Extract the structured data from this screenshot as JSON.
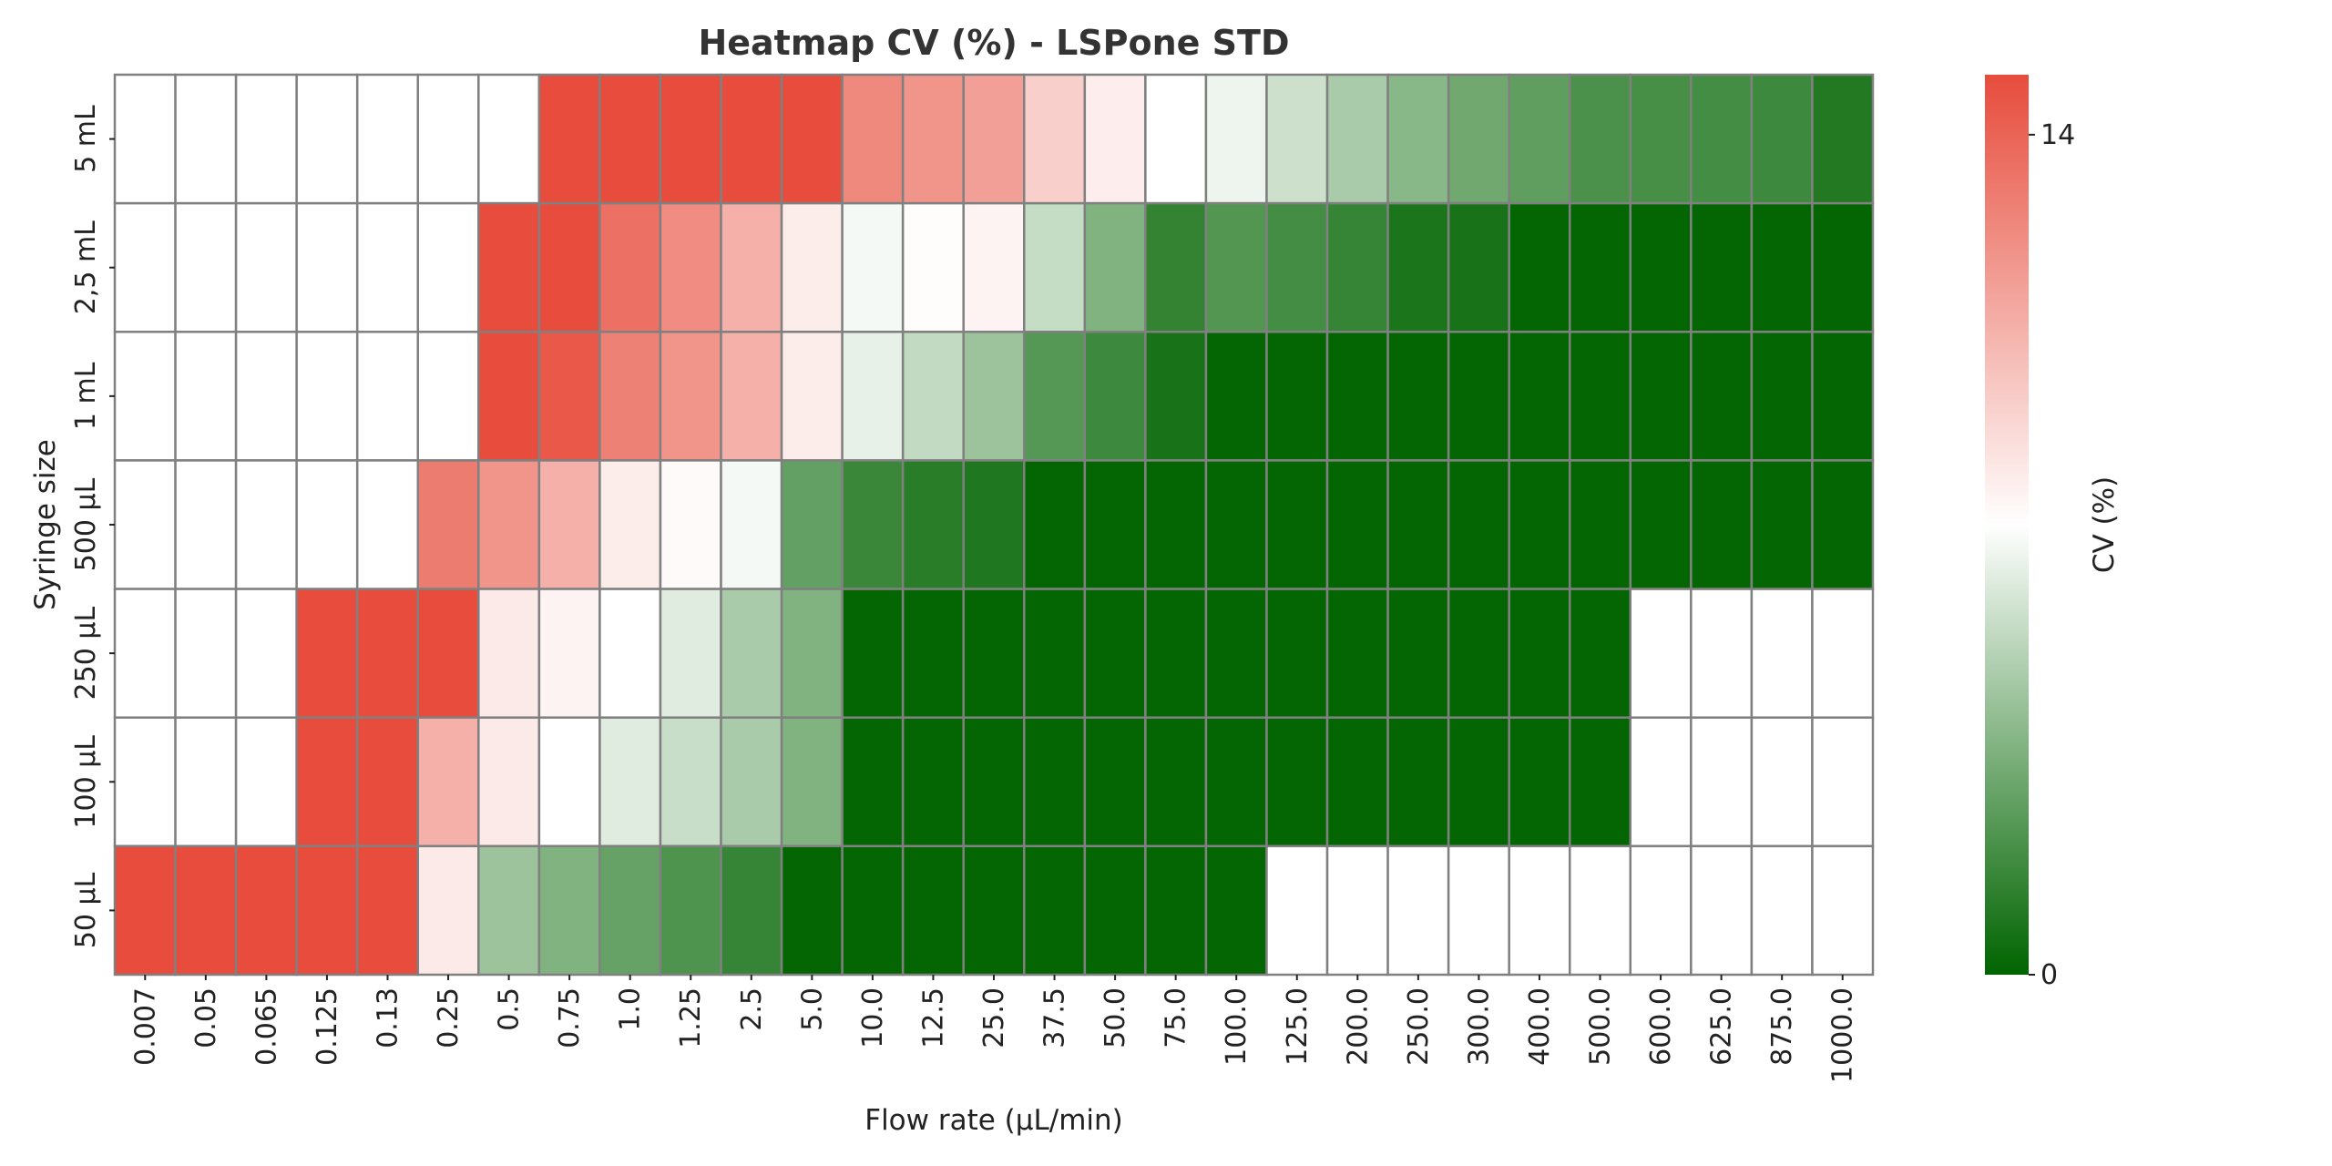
{
  "chart_data": {
    "type": "heatmap",
    "title": "Heatmap CV (%) - LSPone STD",
    "xlabel": "Flow rate (µL/min)",
    "ylabel": "Syringe size",
    "colorbar_label": "CV (%)",
    "colorbar_ticks": [
      0,
      14
    ],
    "colorbar_tick_labels": [
      "0",
      "14"
    ],
    "value_range": [
      0,
      15
    ],
    "colors": {
      "low": "#006400",
      "mid": "#ffffff",
      "high": "#e74c3c",
      "missing": "#ffffff",
      "grid": "#808080"
    },
    "x_categories": [
      "0.007",
      "0.05",
      "0.065",
      "0.125",
      "0.13",
      "0.25",
      "0.5",
      "0.75",
      "1.0",
      "1.25",
      "2.5",
      "5.0",
      "10.0",
      "12.5",
      "25.0",
      "37.5",
      "50.0",
      "75.0",
      "100.0",
      "125.0",
      "200.0",
      "250.0",
      "300.0",
      "400.0",
      "500.0",
      "600.0",
      "625.0",
      "875.0",
      "1000.0"
    ],
    "y_categories": [
      "5 mL",
      "2,5 mL",
      "1 mL",
      "500 µL",
      "250 µL",
      "100 µL",
      "50 µL"
    ],
    "values": [
      [
        null,
        null,
        null,
        null,
        null,
        null,
        null,
        15,
        15,
        15,
        15,
        15,
        12.5,
        12,
        11.5,
        9.5,
        8.2,
        7.5,
        7,
        6,
        5,
        4,
        3.3,
        2.8,
        2.2,
        2.1,
        2,
        1.8,
        1.0
      ],
      [
        null,
        null,
        null,
        null,
        null,
        null,
        15,
        15,
        13.5,
        12.3,
        10.8,
        8.3,
        7.2,
        7.6,
        8.0,
        5.8,
        3.8,
        1.5,
        2.4,
        2.0,
        1.6,
        0.8,
        0.7,
        0.1,
        0.1,
        0.1,
        0.1,
        0.1,
        0.1
      ],
      [
        null,
        null,
        null,
        null,
        null,
        null,
        15,
        14.5,
        12.8,
        12,
        10.8,
        8.3,
        6.8,
        5.7,
        4.6,
        2.5,
        1.8,
        0.7,
        0.1,
        0.1,
        0.1,
        0.1,
        0.1,
        0.1,
        0.1,
        0.1,
        0.1,
        0.1,
        0.1
      ],
      [
        null,
        null,
        null,
        null,
        null,
        13,
        12,
        10.8,
        8.3,
        7.7,
        7.2,
        2.9,
        1.7,
        1.2,
        0.9,
        0.1,
        0.1,
        0.1,
        0.1,
        0.1,
        0.1,
        0.1,
        0.1,
        0.1,
        0.1,
        0.1,
        0.1,
        0.1,
        0.1
      ],
      [
        null,
        null,
        null,
        15,
        15,
        15,
        8.4,
        8.0,
        7.5,
        6.6,
        5.0,
        3.8,
        0.1,
        0.1,
        0.1,
        0.1,
        0.1,
        0.1,
        0.1,
        0.1,
        0.1,
        0.1,
        0.1,
        0.1,
        0.1,
        null,
        null,
        null,
        null
      ],
      [
        null,
        null,
        null,
        15,
        15,
        10.8,
        8.4,
        7.5,
        6.6,
        5.9,
        5.0,
        3.8,
        0.1,
        0.1,
        0.1,
        0.1,
        0.1,
        0.1,
        0.1,
        0.1,
        0.1,
        0.1,
        0.1,
        0.1,
        0.1,
        null,
        null,
        null,
        null
      ],
      [
        15,
        15,
        15,
        15,
        15,
        8.4,
        4.6,
        3.8,
        3.0,
        2.3,
        1.6,
        0.1,
        0.1,
        0.1,
        0.1,
        0.1,
        0.1,
        0.1,
        0.1,
        null,
        null,
        null,
        null,
        null,
        null,
        null,
        null,
        null,
        null
      ]
    ]
  }
}
